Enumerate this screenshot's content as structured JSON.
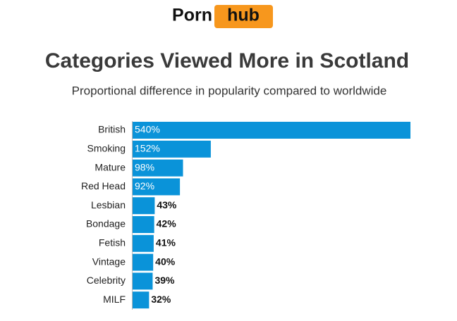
{
  "chart_data": {
    "type": "hbar",
    "brand": [
      "Porn",
      "hub"
    ],
    "title": "Categories Viewed More in Scotland",
    "subtitle": "Proportional difference in popularity compared to worldwide",
    "categories": [
      "British",
      "Smoking",
      "Mature",
      "Red Head",
      "Lesbian",
      "Bondage",
      "Fetish",
      "Vintage",
      "Celebrity",
      "MILF"
    ],
    "values": [
      540,
      152,
      98,
      92,
      43,
      42,
      41,
      40,
      39,
      32
    ],
    "value_labels": [
      "540%",
      "152%",
      "98%",
      "92%",
      "43%",
      "42%",
      "41%",
      "40%",
      "39%",
      "32%"
    ],
    "color": "#0a93d9"
  }
}
